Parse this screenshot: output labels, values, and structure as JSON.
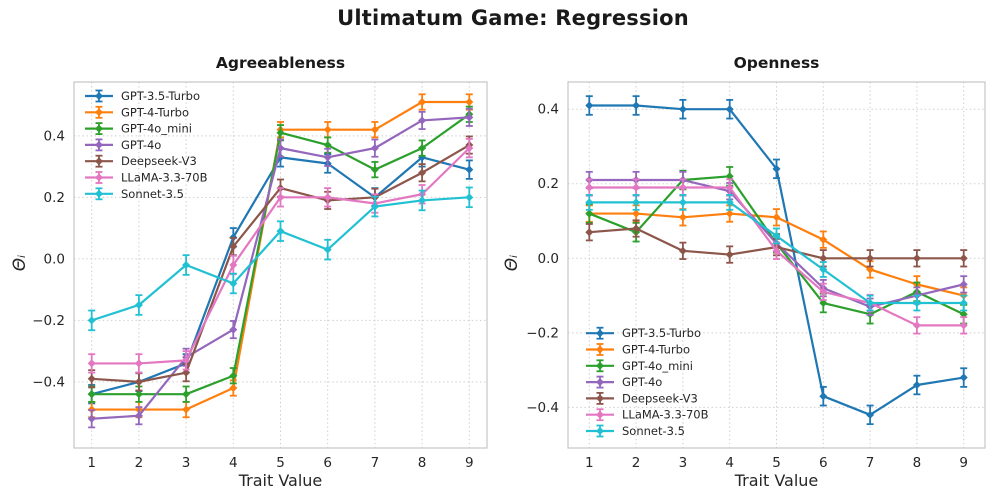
{
  "figure": {
    "title": "Ultimatum Game: Regression",
    "background": "#ffffff"
  },
  "chart_data": [
    {
      "type": "line",
      "title": "Agreeableness",
      "xlabel": "Trait Value",
      "ylabel": "Θᵢ",
      "marker": "diamond",
      "error_bars": true,
      "grid": true,
      "legend_loc": "upper-left",
      "x": [
        1,
        2,
        3,
        4,
        5,
        6,
        7,
        8,
        9
      ],
      "xlim": [
        0.625,
        9.375
      ],
      "ylim": [
        -0.615,
        0.575
      ],
      "yticks": [
        0.4,
        0.2,
        0.0,
        -0.2,
        -0.4
      ],
      "series": [
        {
          "name": "GPT-3.5-Turbo",
          "color": "#1f77b4",
          "err": 0.03,
          "values": [
            -0.44,
            -0.4,
            -0.34,
            0.07,
            0.33,
            0.31,
            0.2,
            0.33,
            0.29
          ]
        },
        {
          "name": "GPT-4-Turbo",
          "color": "#ff7f0e",
          "err": 0.025,
          "values": [
            -0.49,
            -0.49,
            -0.49,
            -0.42,
            0.42,
            0.42,
            0.42,
            0.51,
            0.51
          ]
        },
        {
          "name": "GPT-4o_mini",
          "color": "#2ca02c",
          "err": 0.025,
          "values": [
            -0.44,
            -0.44,
            -0.44,
            -0.38,
            0.41,
            0.37,
            0.29,
            0.36,
            0.47
          ]
        },
        {
          "name": "GPT-4o",
          "color": "#9467bd",
          "err": 0.028,
          "values": [
            -0.52,
            -0.51,
            -0.32,
            -0.23,
            0.36,
            0.33,
            0.36,
            0.45,
            0.46
          ]
        },
        {
          "name": "Deepseek-V3",
          "color": "#8c564b",
          "err": 0.028,
          "values": [
            -0.39,
            -0.4,
            -0.37,
            0.04,
            0.23,
            0.19,
            0.2,
            0.28,
            0.37
          ]
        },
        {
          "name": "LLaMA-3.3-70B",
          "color": "#e377c2",
          "err": 0.03,
          "values": [
            -0.34,
            -0.34,
            -0.33,
            -0.02,
            0.2,
            0.2,
            0.18,
            0.21,
            0.36
          ]
        },
        {
          "name": "Sonnet-3.5",
          "color": "#22c0d3",
          "err": 0.032,
          "values": [
            -0.2,
            -0.15,
            -0.02,
            -0.08,
            0.09,
            0.03,
            0.17,
            0.19,
            0.2
          ]
        }
      ]
    },
    {
      "type": "line",
      "title": "Openness",
      "xlabel": "Trait Value",
      "ylabel": "Θᵢ",
      "marker": "diamond",
      "error_bars": true,
      "grid": true,
      "legend_loc": "lower-left",
      "x": [
        1,
        2,
        3,
        4,
        5,
        6,
        7,
        8,
        9
      ],
      "xlim": [
        0.545,
        9.455
      ],
      "ylim": [
        -0.509,
        0.473
      ],
      "yticks": [
        0.4,
        0.2,
        0.0,
        -0.2,
        -0.4
      ],
      "series": [
        {
          "name": "GPT-3.5-Turbo",
          "color": "#1f77b4",
          "err": 0.025,
          "values": [
            0.41,
            0.41,
            0.4,
            0.4,
            0.24,
            -0.37,
            -0.42,
            -0.34,
            -0.32
          ]
        },
        {
          "name": "GPT-4-Turbo",
          "color": "#ff7f0e",
          "err": 0.022,
          "values": [
            0.12,
            0.12,
            0.11,
            0.12,
            0.11,
            0.05,
            -0.03,
            -0.07,
            -0.1
          ]
        },
        {
          "name": "GPT-4o_mini",
          "color": "#2ca02c",
          "err": 0.025,
          "values": [
            0.12,
            0.07,
            0.21,
            0.22,
            0.04,
            -0.12,
            -0.15,
            -0.09,
            -0.15
          ]
        },
        {
          "name": "GPT-4o",
          "color": "#9467bd",
          "err": 0.022,
          "values": [
            0.21,
            0.21,
            0.21,
            0.18,
            0.04,
            -0.08,
            -0.13,
            -0.1,
            -0.07
          ]
        },
        {
          "name": "Deepseek-V3",
          "color": "#8c564b",
          "err": 0.022,
          "values": [
            0.07,
            0.08,
            0.02,
            0.01,
            0.03,
            0.0,
            0.0,
            0.0,
            0.0
          ]
        },
        {
          "name": "LLaMA-3.3-70B",
          "color": "#e377c2",
          "err": 0.022,
          "values": [
            0.19,
            0.19,
            0.19,
            0.19,
            0.02,
            -0.09,
            -0.12,
            -0.18,
            -0.18
          ]
        },
        {
          "name": "Sonnet-3.5",
          "color": "#22c0d3",
          "err": 0.02,
          "values": [
            0.15,
            0.15,
            0.15,
            0.15,
            0.06,
            -0.03,
            -0.12,
            -0.12,
            -0.12
          ]
        }
      ]
    }
  ]
}
